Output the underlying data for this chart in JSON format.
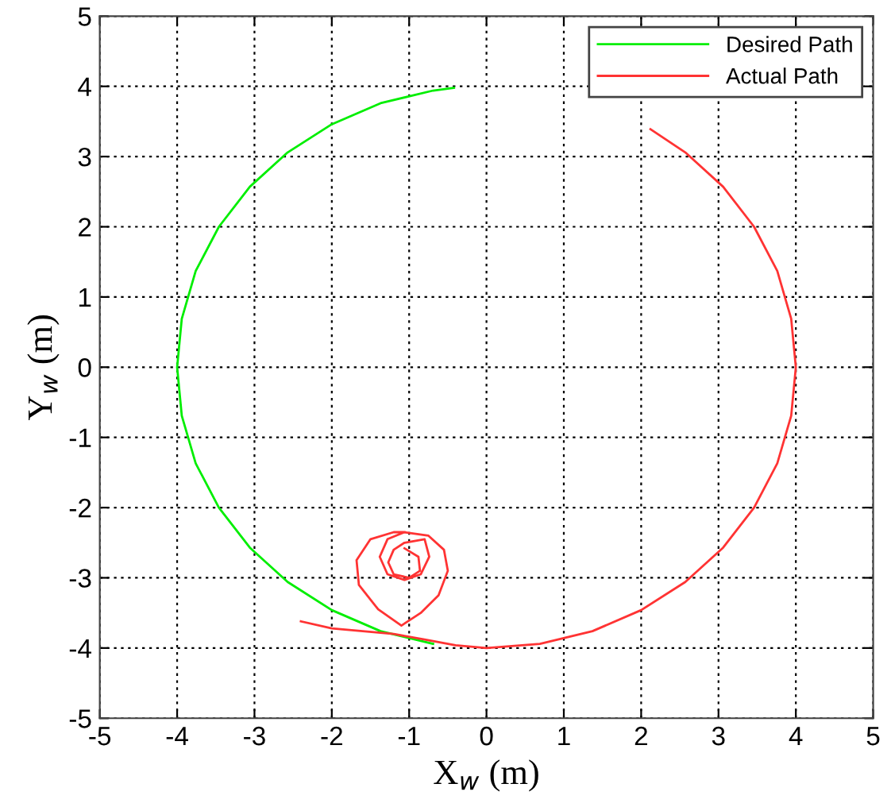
{
  "chart_data": {
    "type": "line",
    "xlabel": "X$_{w}$ (m)",
    "ylabel": "Y$_{w}$ (m)",
    "xlim": [
      -5,
      5
    ],
    "ylim": [
      -5,
      5
    ],
    "xticks": [
      -5,
      -4,
      -3,
      -2,
      -1,
      0,
      1,
      2,
      3,
      4,
      5
    ],
    "yticks": [
      -5,
      -4,
      -3,
      -2,
      -1,
      0,
      1,
      2,
      3,
      4,
      5
    ],
    "grid": true,
    "legend": "top right",
    "line_style": "solid",
    "marker": "none",
    "series": [
      {
        "name": "Desired Path",
        "color": "#00ee00",
        "x": [
          -0.69,
          -1.37,
          -2.0,
          -2.57,
          -3.06,
          -3.46,
          -3.76,
          -3.94,
          -4,
          -3.94,
          -3.76,
          -3.46,
          -3.06,
          -2.57,
          -2.0,
          -1.37,
          -0.69,
          -0.42
        ],
        "values": [
          -3.94,
          -3.76,
          -3.46,
          -3.06,
          -2.57,
          -2.0,
          -1.37,
          -0.69,
          0,
          0.69,
          1.37,
          2.0,
          2.57,
          3.06,
          3.46,
          3.76,
          3.94,
          3.98
        ]
      },
      {
        "name": "Actual Path",
        "color": "#ff3333",
        "x": [
          -2.4,
          -2.0,
          -1.6,
          -1.2,
          -0.8,
          -0.4,
          0,
          0.69,
          1.37,
          2.0,
          2.57,
          3.06,
          3.46,
          3.76,
          3.94,
          4,
          3.94,
          3.76,
          3.46,
          3.06,
          2.57,
          2.12,
          null,
          -1.06,
          -0.88,
          -0.86,
          -1.0,
          -1.2,
          -1.27,
          -1.2,
          -1.06,
          -0.8,
          -0.74,
          -0.85,
          -1.06,
          -1.28,
          -1.38,
          -1.28,
          -1.06,
          -0.75,
          -0.55,
          -0.5,
          -0.62,
          -0.85,
          -1.1,
          -1.4,
          -1.65,
          -1.68,
          -1.5,
          -1.2,
          -1.06
        ],
        "values": [
          -3.62,
          -3.72,
          -3.76,
          -3.8,
          -3.88,
          -3.96,
          -4,
          -3.94,
          -3.76,
          -3.46,
          -3.06,
          -2.57,
          -2.0,
          -1.37,
          -0.69,
          0,
          0.69,
          1.37,
          2.0,
          2.57,
          3.06,
          3.39,
          null,
          -2.58,
          -2.7,
          -2.9,
          -3.0,
          -2.95,
          -2.78,
          -2.6,
          -2.5,
          -2.45,
          -2.7,
          -2.95,
          -3.03,
          -2.95,
          -2.7,
          -2.45,
          -2.35,
          -2.4,
          -2.6,
          -2.9,
          -3.25,
          -3.5,
          -3.68,
          -3.45,
          -3.1,
          -2.75,
          -2.45,
          -2.35,
          -2.35
        ]
      }
    ]
  }
}
